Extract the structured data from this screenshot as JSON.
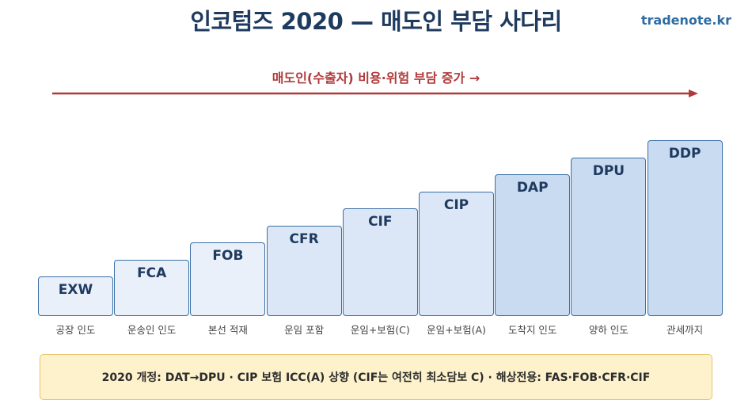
{
  "title": "인코텀즈 2020 — 매도인 부담 사다리",
  "brand": "tradenote.kr",
  "arrow_label": "매도인(수출자) 비용·위험 부담 증가 →",
  "steps": [
    {
      "code": "EXW",
      "label": "공장 인도"
    },
    {
      "code": "FCA",
      "label": "운송인 인도"
    },
    {
      "code": "FOB",
      "label": "본선 적재"
    },
    {
      "code": "CFR",
      "label": "운임 포함"
    },
    {
      "code": "CIF",
      "label": "운임+보험(C)"
    },
    {
      "code": "CIP",
      "label": "운임+보험(A)"
    },
    {
      "code": "DAP",
      "label": "도착지 인도"
    },
    {
      "code": "DPU",
      "label": "양하 인도"
    },
    {
      "code": "DDP",
      "label": "관세까지"
    }
  ],
  "note": "2020 개정: DAT→DPU · CIP 보험 ICC(A) 상향 (CIF는 여전히 최소담보 C) · 해상전용: FAS·FOB·CFR·CIF",
  "colors": {
    "light": "#e9f0fa",
    "mid": "#dbe7f6",
    "dark": "#c8dbf0",
    "arrow": "#b03a3a"
  }
}
